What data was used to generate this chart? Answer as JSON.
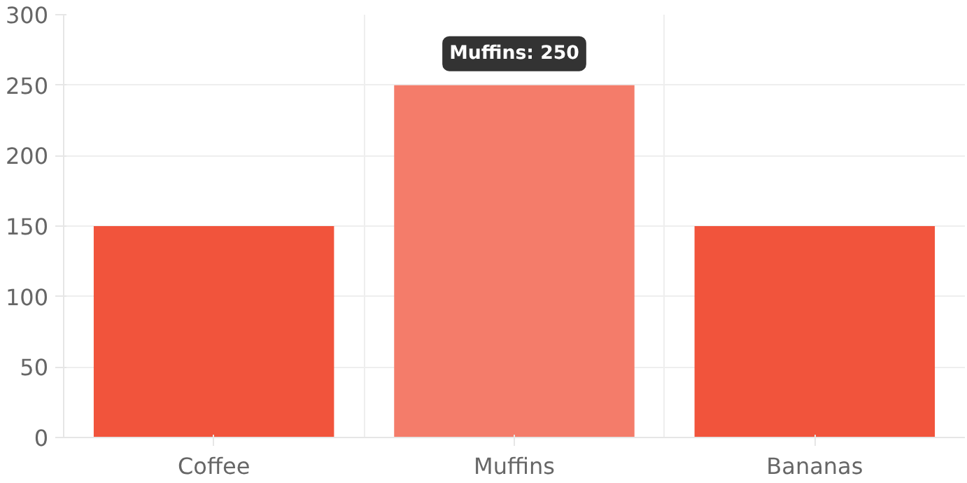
{
  "chart_data": {
    "type": "bar",
    "categories": [
      "Coffee",
      "Muffins",
      "Bananas"
    ],
    "values": [
      150,
      250,
      150
    ],
    "colors": [
      "#f1543c",
      "#f47c6a",
      "#f1543c"
    ],
    "ylim": [
      0,
      300
    ],
    "yticks": [
      0,
      50,
      100,
      150,
      200,
      250,
      300
    ],
    "grid": true,
    "annotations": [
      {
        "text": "Muffins: 250",
        "x": "Muffins",
        "y": 250
      }
    ]
  }
}
